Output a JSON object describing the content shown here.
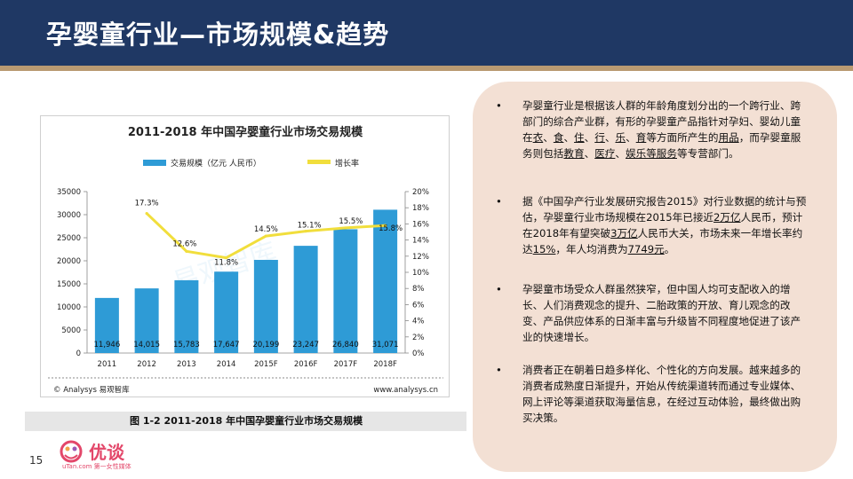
{
  "slide": {
    "title": "孕婴童行业—市场规模&趋势",
    "page_number": "15"
  },
  "brand": {
    "name": "优谈",
    "tagline": "uTan.com 第一女性媒体"
  },
  "colors": {
    "header_bg": "#1f3864",
    "accent": "#b99a72",
    "bar": "#2e9bd6",
    "line": "#f1de3c",
    "panel_bg": "#f3e0d4"
  },
  "chart_data": {
    "type": "bar",
    "title": "2011-2018 年中国孕婴童行业市场交易规模",
    "categories": [
      "2011",
      "2012",
      "2013",
      "2014",
      "2015F",
      "2016F",
      "2017F",
      "2018F"
    ],
    "series": [
      {
        "name": "交易规模（亿元 人民币）",
        "values": [
          11946,
          14015,
          15783,
          17647,
          20199,
          23247,
          26840,
          31071
        ]
      },
      {
        "name": "增长率",
        "type": "line",
        "axis": "right",
        "values": [
          null,
          17.3,
          12.6,
          11.8,
          14.5,
          15.1,
          15.5,
          15.8
        ]
      }
    ],
    "value_labels": [
      "11,946",
      "14,015",
      "15,783",
      "17,647",
      "20,199",
      "23,247",
      "26,840",
      "31,071"
    ],
    "rate_labels": [
      "",
      "17.3%",
      "12.6%",
      "11.8%",
      "14.5%",
      "15.1%",
      "15.5%",
      "15.8%"
    ],
    "y_left_ticks": [
      "0",
      "5000",
      "10000",
      "15000",
      "20000",
      "25000",
      "30000",
      "35000"
    ],
    "y_right_ticks": [
      "0%",
      "2%",
      "4%",
      "6%",
      "8%",
      "10%",
      "12%",
      "14%",
      "16%",
      "18%",
      "20%"
    ],
    "ylim": [
      0,
      35000
    ],
    "y2lim": [
      0,
      20
    ],
    "source": "© Analysys 易观智库",
    "url": "www.analysys.cn",
    "watermark": "易观智库",
    "caption": "图 1-2 2011-2018 年中国孕婴童行业市场交易规模"
  },
  "bullets": [
    {
      "marker": "•",
      "segments": [
        {
          "t": "孕婴童行业是根据该人群的年龄角度划分出的一个跨行业、跨部门的综合产业群，有形的孕婴童产品指针对孕妇、婴幼儿童在"
        },
        {
          "t": "衣",
          "u": true
        },
        {
          "t": "、"
        },
        {
          "t": "食",
          "u": true
        },
        {
          "t": "、"
        },
        {
          "t": "住",
          "u": true
        },
        {
          "t": "、"
        },
        {
          "t": "行",
          "u": true
        },
        {
          "t": "、"
        },
        {
          "t": "乐",
          "u": true
        },
        {
          "t": "、"
        },
        {
          "t": "育",
          "u": true
        },
        {
          "t": "等方面所产生的"
        },
        {
          "t": "用品",
          "u": true
        },
        {
          "t": "，而孕婴童服务则包括"
        },
        {
          "t": "教育",
          "u": true
        },
        {
          "t": "、"
        },
        {
          "t": "医疗",
          "u": true
        },
        {
          "t": "、"
        },
        {
          "t": "娱乐等服务",
          "u": true
        },
        {
          "t": "等专营部门。"
        }
      ]
    },
    {
      "marker": "•",
      "segments": [
        {
          "t": "据《中国孕产行业发展研究报告2015》对行业数据的统计与预估，孕婴童行业市场规模在2015年已接近"
        },
        {
          "t": "2万亿",
          "u": true
        },
        {
          "t": "人民币，预计在2018年有望突破"
        },
        {
          "t": "3万亿",
          "u": true
        },
        {
          "t": "人民币大关，市场未来一年增长率约达"
        },
        {
          "t": "15%",
          "u": true
        },
        {
          "t": "，年人均消费为"
        },
        {
          "t": "7749元",
          "u": true
        },
        {
          "t": "。"
        }
      ]
    },
    {
      "marker": "•",
      "segments": [
        {
          "t": "孕婴童市场受众人群虽然狭窄，但中国人均可支配收入的增长、人们消费观念的提升、二胎政策的开放、育儿观念的改变、产品供应体系的日渐丰富与升级皆不同程度地促进了该产业的快速增长。"
        }
      ]
    },
    {
      "marker": "•",
      "segments": [
        {
          "t": "消费者正在朝着日趋多样化、个性化的方向发展。越来越多的消费者成熟度日渐提升，开始从传统渠道转而通过专业媒体、网上评论等渠道获取海量信息，在经过互动体验，最终做出购买决策。"
        }
      ]
    }
  ]
}
